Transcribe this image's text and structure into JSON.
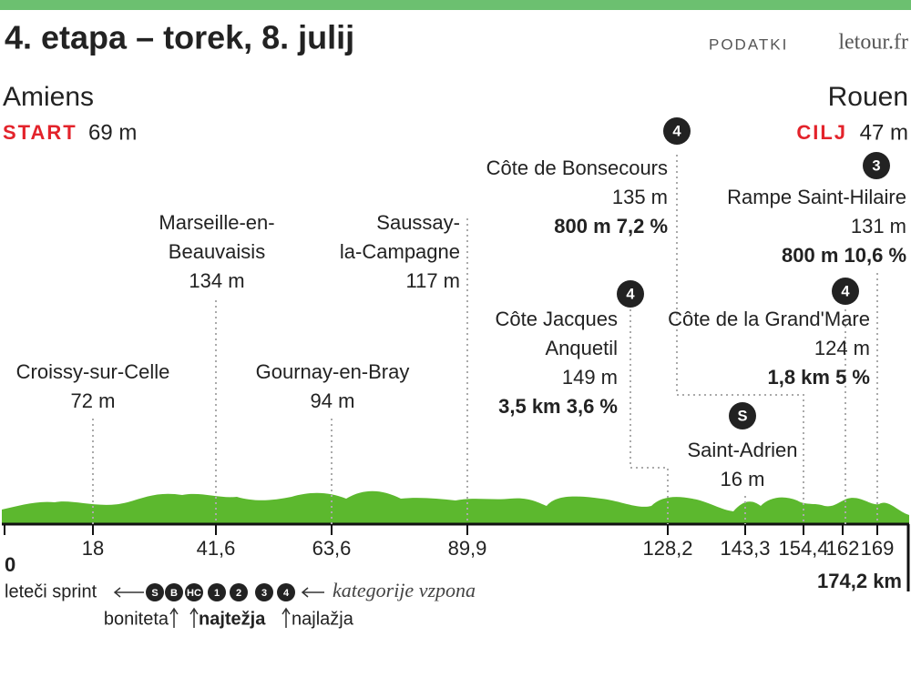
{
  "header": {
    "title": "4. etapa  – torek, 8. julij",
    "source_label": "PODATKI",
    "source": "letour.fr"
  },
  "start": {
    "city": "Amiens",
    "label": "START",
    "elevation": "69 m"
  },
  "finish": {
    "city": "Rouen",
    "label": "CILJ",
    "elevation": "47 m"
  },
  "points": [
    {
      "name_lines": [
        "Croissy-sur-Celle"
      ],
      "elevation": "72 m"
    },
    {
      "name_lines": [
        "Marseille-en-",
        "Beauvaisis"
      ],
      "elevation": "134 m"
    },
    {
      "name_lines": [
        "Gournay-en-Bray"
      ],
      "elevation": "94 m"
    },
    {
      "name_lines": [
        "Saussay-",
        "la-Campagne"
      ],
      "elevation": "117 m"
    },
    {
      "name_lines": [
        "Côte Jacques",
        "Anquetil"
      ],
      "elevation": "149 m",
      "climb": "3,5 km 3,6 %",
      "category": "4"
    },
    {
      "name_lines": [
        "Côte de Bonsecours"
      ],
      "elevation": "135 m",
      "climb": "800 m 7,2 %",
      "category": "4"
    },
    {
      "name_lines": [
        "Saint-Adrien"
      ],
      "elevation": "16 m",
      "category": "S"
    },
    {
      "name_lines": [
        "Côte de la Grand'Mare"
      ],
      "elevation": "124 m",
      "climb": "1,8 km 5 %",
      "category": "4"
    },
    {
      "name_lines": [
        "Rampe Saint-Hilaire"
      ],
      "elevation": "131 m",
      "climb": "800 m 10,6 %",
      "category": "3"
    }
  ],
  "km_ticks": [
    "0",
    "18",
    "41,6",
    "63,6",
    "89,9",
    "128,2",
    "143,3",
    "154,4",
    "162",
    "169"
  ],
  "total": "174,2 km",
  "legend": {
    "sprint": "leteči sprint",
    "badges": [
      "S",
      "B",
      "HC",
      "1",
      "2",
      "3",
      "4"
    ],
    "categories": "kategorije vzpona",
    "bonus": "boniteta",
    "hardest": "najtežja",
    "easiest": "najlažja"
  }
}
